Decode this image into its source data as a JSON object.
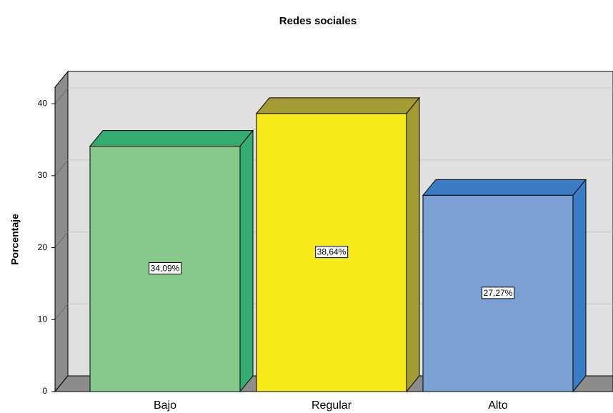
{
  "chart_data": {
    "type": "bar3d",
    "title": "Redes sociales",
    "ylabel": "Porcentaje",
    "categories": [
      "Bajo",
      "Regular",
      "Alto"
    ],
    "values": [
      34.09,
      38.64,
      27.27
    ],
    "value_labels": [
      "34,09%",
      "38,64%",
      "27,27%"
    ],
    "colors": [
      "#86c98a",
      "#f5e91a",
      "#7aa0d4"
    ],
    "side_colors": [
      "#35ad72",
      "#a39b34",
      "#3a7dc5"
    ],
    "ylim": [
      0,
      42.3
    ],
    "yticks": [
      0,
      10,
      20,
      30,
      40
    ],
    "grid": true
  }
}
